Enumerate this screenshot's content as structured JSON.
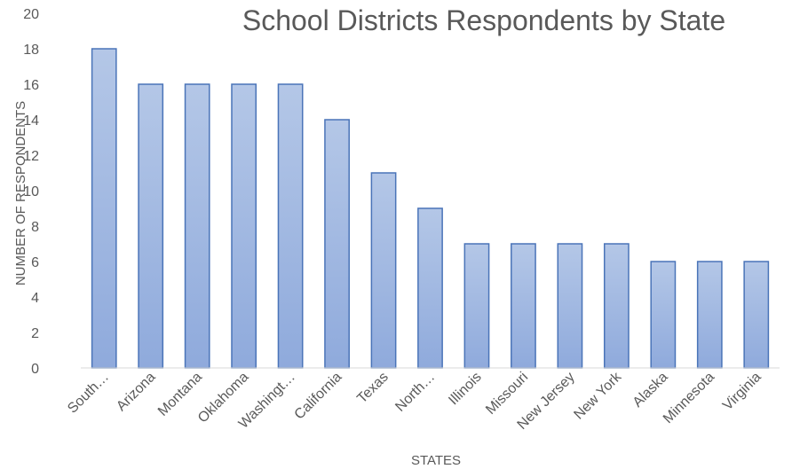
{
  "chart_data": {
    "type": "bar",
    "title": "School Districts Respondents by State",
    "xlabel": "STATES",
    "ylabel": "NUMBER OF RESPONDENTS",
    "categories": [
      "South…",
      "Arizona",
      "Montana",
      "Oklahoma",
      "Washingt…",
      "California",
      "Texas",
      "North…",
      "Illinois",
      "Missouri",
      "New Jersey",
      "New York",
      "Alaska",
      "Minnesota",
      "Virginia"
    ],
    "values": [
      18,
      16,
      16,
      16,
      16,
      14,
      11,
      9,
      7,
      7,
      7,
      7,
      6,
      6,
      6
    ],
    "ylim": [
      0,
      20
    ],
    "yticks": [
      0,
      2,
      4,
      6,
      8,
      10,
      12,
      14,
      16,
      18,
      20
    ],
    "grid": false,
    "legend": "none",
    "colors": {
      "bar_top": "#b4c7e7",
      "bar_bottom": "#8faadc",
      "bar_border": "#4a74b8",
      "axis": "#d9d9d9",
      "text": "#595959"
    }
  }
}
